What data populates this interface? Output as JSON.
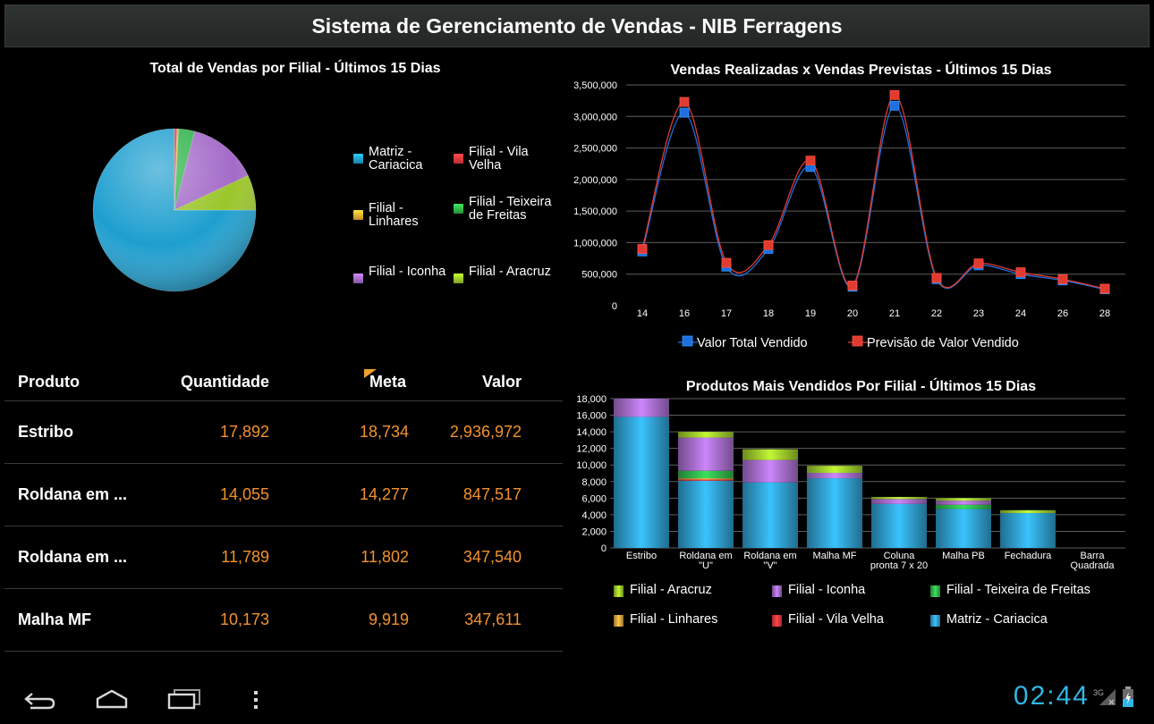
{
  "app_title": "Sistema de Gerenciamento de Vendas - NIB Ferragens",
  "colors": {
    "matriz": "#1e9fcf",
    "vila_velha": "#e8383d",
    "linhares": "#f0b030",
    "teixeira": "#2fb34a",
    "iconha": "#a36bc8",
    "aracruz": "#9bc62a",
    "realizadas": "#1f6fe0",
    "previstas": "#e03b30",
    "orange_text": "#f3922e",
    "clock": "#33b5e5"
  },
  "pie": {
    "title": "Total de Vendas por Filial - Últimos 15 Dias",
    "legend": [
      {
        "label": "Matriz - Cariacica",
        "color": "#1e9fcf"
      },
      {
        "label": "Filial - Vila Velha",
        "color": "#e8383d"
      },
      {
        "label": "Filial - Linhares",
        "color": "#f0b030"
      },
      {
        "label": "Filial - Teixeira de Freitas",
        "color": "#2fb34a"
      },
      {
        "label": "Filial - Iconha",
        "color": "#a36bc8"
      },
      {
        "label": "Filial - Aracruz",
        "color": "#9bc62a"
      }
    ]
  },
  "table": {
    "headers": {
      "product": "Produto",
      "quantity": "Quantidade",
      "meta": "Meta",
      "value": "Valor"
    },
    "rows": [
      {
        "product": "Estribo",
        "quantity": "17,892",
        "meta": "18,734",
        "value": "2,936,972"
      },
      {
        "product": "Roldana em ...",
        "quantity": "14,055",
        "meta": "14,277",
        "value": "847,517"
      },
      {
        "product": "Roldana em ...",
        "quantity": "11,789",
        "meta": "11,802",
        "value": "347,540"
      },
      {
        "product": "Malha MF",
        "quantity": "10,173",
        "meta": "9,919",
        "value": "347,611"
      }
    ]
  },
  "nav": {
    "back": "back-icon",
    "home": "home-icon",
    "recents": "recents-icon",
    "menu": "menu-icon"
  },
  "status": {
    "clock": "02:44",
    "network": "3G"
  },
  "chart_data": [
    {
      "type": "pie",
      "title": "Total de Vendas por Filial - Últimos 15 Dias",
      "categories": [
        "Matriz - Cariacica",
        "Filial - Vila Velha",
        "Filial - Linhares",
        "Filial - Teixeira de Freitas",
        "Filial - Iconha",
        "Filial - Aracruz"
      ],
      "values": [
        75,
        0.5,
        0.3,
        3.2,
        14,
        7
      ]
    },
    {
      "type": "line",
      "title": "Vendas Realizadas x Vendas Previstas - Últimos 15 Dias",
      "x": [
        "14",
        "16",
        "17",
        "18",
        "19",
        "20",
        "21",
        "22",
        "23",
        "24",
        "26",
        "28"
      ],
      "ylim": [
        0,
        3500000
      ],
      "yticks": [
        "0",
        "500,000",
        "1,000,000",
        "1,500,000",
        "2,000,000",
        "2,500,000",
        "3,000,000",
        "3,500,000"
      ],
      "legend_position": "bottom",
      "series": [
        {
          "name": "Valor Total Vendido",
          "color": "#1f6fe0",
          "values": [
            860000,
            3060000,
            620000,
            900000,
            2200000,
            300000,
            3170000,
            420000,
            640000,
            500000,
            400000,
            260000
          ]
        },
        {
          "name": "Previsão de Valor Vendido",
          "color": "#e03b30",
          "values": [
            900000,
            3230000,
            680000,
            960000,
            2300000,
            320000,
            3340000,
            440000,
            670000,
            530000,
            420000,
            270000
          ]
        }
      ]
    },
    {
      "type": "bar",
      "stacked": true,
      "title": "Produtos Mais Vendidos Por Filial - Últimos 15 Dias",
      "categories": [
        "Estribo",
        "Roldana em \"U\"",
        "Roldana em \"V\"",
        "Malha MF",
        "Coluna pronta 7 x 20",
        "Malha PB",
        "Fechadura",
        "Barra Quadrada"
      ],
      "ylim": [
        0,
        18000
      ],
      "yticks": [
        "0",
        "2,000",
        "4,000",
        "6,000",
        "8,000",
        "10,000",
        "12,000",
        "14,000",
        "16,000",
        "18,000"
      ],
      "legend_position": "bottom",
      "legend": [
        {
          "name": "Filial - Aracruz",
          "color": "#9bc62a"
        },
        {
          "name": "Filial - Iconha",
          "color": "#a36bc8"
        },
        {
          "name": "Filial - Teixeira de Freitas",
          "color": "#2fb34a"
        },
        {
          "name": "Filial - Linhares",
          "color": "#d9a040"
        },
        {
          "name": "Filial - Vila Velha",
          "color": "#e8383d"
        },
        {
          "name": "Matriz - Cariacica",
          "color": "#2e9ccb"
        }
      ],
      "series": [
        {
          "name": "Matriz - Cariacica",
          "color": "#2e9ccb",
          "values": [
            15800,
            8100,
            7900,
            8400,
            5300,
            4700,
            4200,
            0
          ]
        },
        {
          "name": "Filial - Vila Velha",
          "color": "#e8383d",
          "values": [
            0,
            150,
            0,
            0,
            0,
            0,
            0,
            0
          ]
        },
        {
          "name": "Filial - Linhares",
          "color": "#d9a040",
          "values": [
            0,
            150,
            0,
            0,
            0,
            0,
            0,
            0
          ]
        },
        {
          "name": "Filial - Teixeira de Freitas",
          "color": "#2fb34a",
          "values": [
            0,
            900,
            0,
            0,
            0,
            500,
            0,
            0
          ]
        },
        {
          "name": "Filial - Iconha",
          "color": "#a36bc8",
          "values": [
            2200,
            4000,
            2700,
            650,
            600,
            500,
            0,
            0
          ]
        },
        {
          "name": "Filial - Aracruz",
          "color": "#9bc62a",
          "values": [
            0,
            700,
            1300,
            850,
            250,
            300,
            350,
            0
          ]
        }
      ]
    }
  ]
}
